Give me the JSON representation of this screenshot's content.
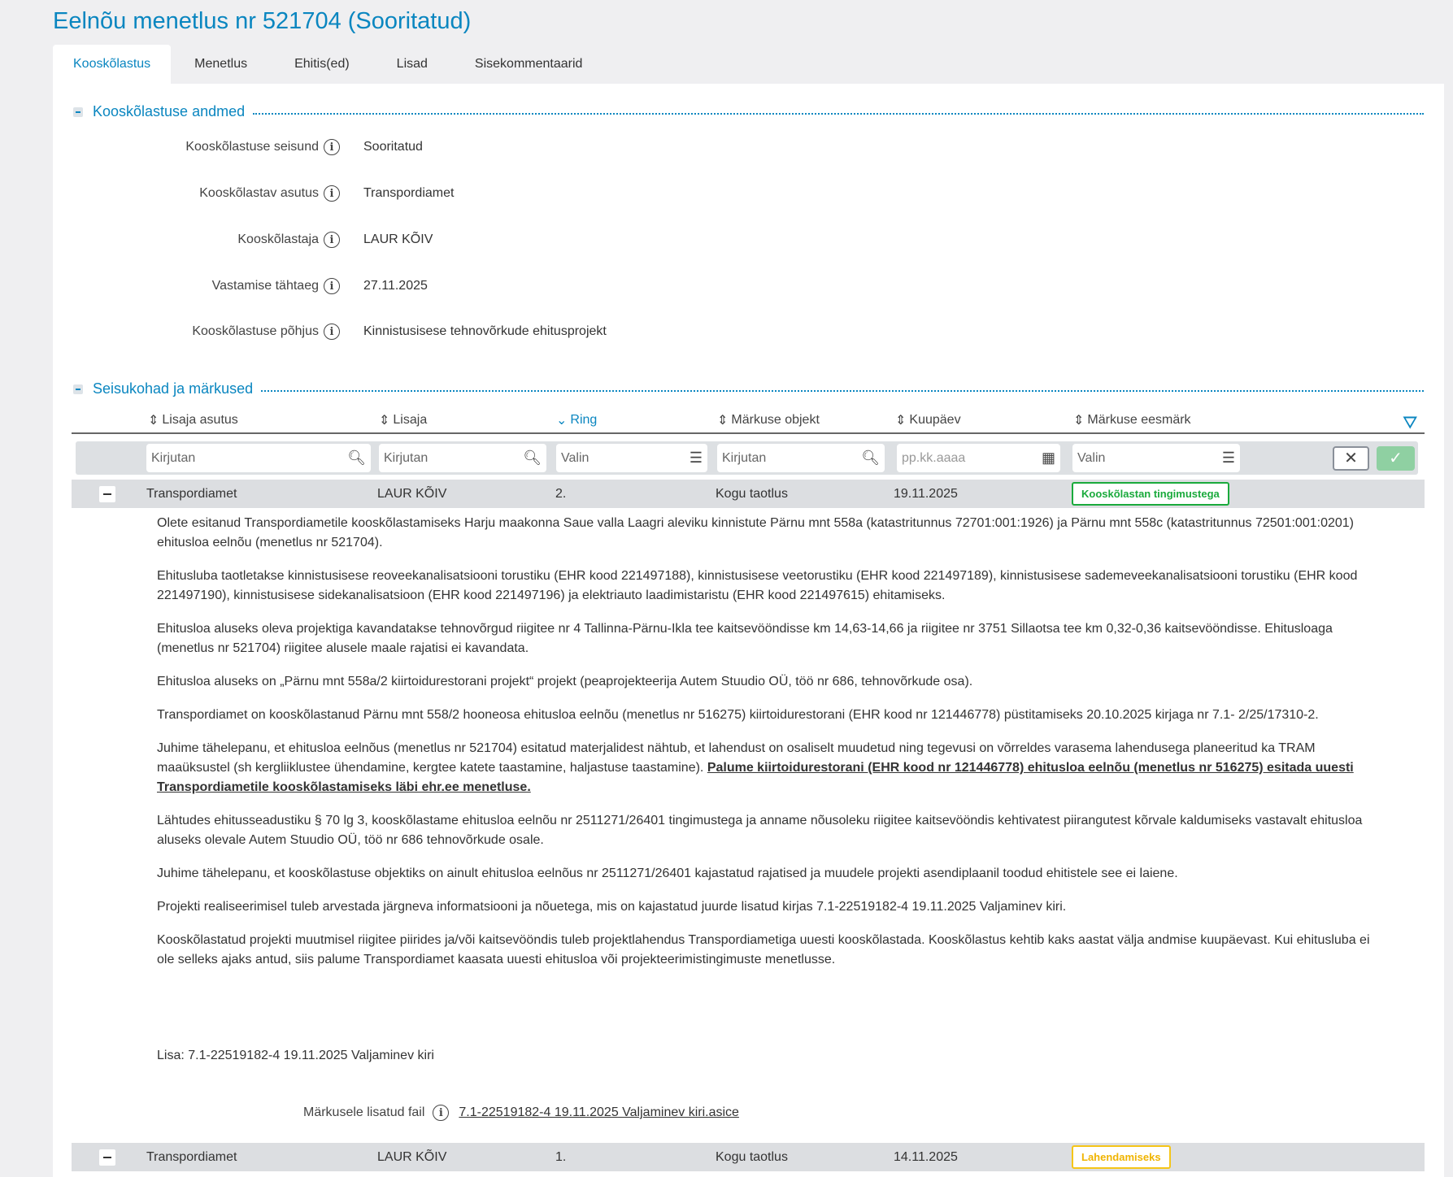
{
  "title": "Eelnõu menetlus nr 521704 (Sooritatud)",
  "tabs": [
    "Kooskõlastus",
    "Menetlus",
    "Ehitis(ed)",
    "Lisad",
    "Sisekommentaarid"
  ],
  "section1": {
    "title": "Kooskõlastuse andmed",
    "fields": [
      {
        "label": "Kooskõlastuse seisund",
        "value": "Sooritatud"
      },
      {
        "label": "Kooskõlastav asutus",
        "value": "Transpordiamet"
      },
      {
        "label": "Kooskõlastaja",
        "value": "LAUR KÕIV"
      },
      {
        "label": "Vastamise tähtaeg",
        "value": "27.11.2025"
      },
      {
        "label": "Kooskõlastuse põhjus",
        "value": "Kinnistusisese tehnovõrkude ehitusprojekt"
      }
    ]
  },
  "section2": {
    "title": "Seisukohad ja märkused",
    "columns": [
      "Lisaja asutus",
      "Lisaja",
      "Ring",
      "Märkuse objekt",
      "Kuupäev",
      "Märkuse eesmärk"
    ],
    "filters": [
      "Kirjutan",
      "Kirjutan",
      "Valin",
      "Kirjutan",
      "pp.kk.aaaa",
      "Valin"
    ],
    "rows": [
      {
        "asutus": "Transpordiamet",
        "lisaja": "LAUR KÕIV",
        "ring": "2.",
        "objekt": "Kogu taotlus",
        "kuupaev": "19.11.2025",
        "eesmark": "Kooskõlastan tingimustega",
        "color": "#1aaa3c"
      },
      {
        "asutus": "Transpordiamet",
        "lisaja": "LAUR KÕIV",
        "ring": "1.",
        "objekt": "Kogu taotlus",
        "kuupaev": "14.11.2025",
        "eesmark": "Lahendamiseks",
        "color": "#f5c518"
      }
    ],
    "body": {
      "p1": "Olete esitanud Transpordiametile kooskõlastamiseks Harju maakonna Saue valla Laagri aleviku kinnistute Pärnu mnt 558a (katastritunnus 72701:001:1926) ja Pärnu mnt 558c (katastritunnus 72501:001:0201) ehitusloa eelnõu (menetlus nr 521704).",
      "p2": "Ehitusluba taotletakse kinnistusisese reoveekanalisatsiooni torustiku (EHR kood 221497188), kinnistusisese veetorustiku (EHR kood 221497189), kinnistusisese sademeveekanalisatsiooni torustiku (EHR kood 221497190), kinnistusisese sidekanalisatsioon (EHR kood 221497196) ja elektriauto laadimistaristu (EHR kood 221497615) ehitamiseks.",
      "p3": "Ehitusloa aluseks oleva projektiga kavandatakse tehnovõrgud riigitee nr 4 Tallinna-Pärnu-Ikla tee kaitsevööndisse km 14,63-14,66 ja riigitee nr 3751 Sillaotsa tee km 0,32-0,36 kaitsevööndisse. Ehitusloaga (menetlus nr 521704) riigitee alusele maale rajatisi ei kavandata.",
      "p4": "Ehitusloa aluseks on „Pärnu mnt 558a/2 kiirtoidurestorani projekt“ projekt (peaprojekteerija Autem Stuudio OÜ, töö nr 686, tehnovõrkude osa).",
      "p5": "Transpordiamet on kooskõlastanud Pärnu mnt 558/2 hooneosa ehitusloa eelnõu (menetlus nr 516275) kiirtoidurestorani (EHR kood nr 121446778) püstitamiseks 20.10.2025 kirjaga nr 7.1- 2/25/17310-2.",
      "p6": "Juhime tähelepanu, et ehitusloa eelnõus (menetlus nr 521704) esitatud materjalidest nähtub, et lahendust on osaliselt muudetud ning tegevusi on võrreldes varasema lahendusega planeeritud ka TRAM maaüksustel (sh kergliiklustee ühendamine, kergtee katete taastamine, haljastuse taastamine). ",
      "p6_link": "Palume kiirtoidurestorani (EHR kood nr 121446778) ehitusloa eelnõu (menetlus nr 516275) esitada uuesti Transpordiametile kooskõlastamiseks läbi ehr.ee menetluse.",
      "p7": "Lähtudes ehitusseadustiku § 70 lg 3, kooskõlastame ehitusloa eelnõu nr 2511271/26401 tingimustega ja anname nõusoleku riigitee kaitsevööndis kehtivatest piirangutest kõrvale kaldumiseks vastavalt ehitusloa aluseks olevale Autem Stuudio OÜ, töö nr 686 tehnovõrkude osale.",
      "p8": "Juhime tähelepanu, et kooskõlastuse objektiks on ainult ehitusloa eelnõus nr 2511271/26401 kajastatud rajatised ja muudele projekti asendiplaanil toodud ehitistele see ei laiene.",
      "p9": "Projekti realiseerimisel tuleb arvestada järgneva informatsiooni ja nõuetega, mis on kajastatud juurde lisatud kirjas 7.1-22519182-4 19.11.2025 Valjaminev kiri.",
      "p10": "Kooskõlastatud projekti muutmisel riigitee piirides ja/või kaitsevööndis tuleb projektlahendus Transpordiametiga uuesti kooskõlastada. Kooskõlastus kehtib kaks aastat välja andmise kuupäevast. Kui ehitusluba ei ole selleks ajaks antud, siis palume Transpordiamet kaasata uuesti ehitusloa või projekteerimistingimuste menetlusse.",
      "lisa": "Lisa: 7.1-22519182-4 19.11.2025 Valjaminev kiri"
    },
    "attachment": {
      "label": "Märkusele lisatud fail",
      "file": "7.1-22519182-4 19.11.2025 Valjaminev kiri.asice"
    }
  }
}
